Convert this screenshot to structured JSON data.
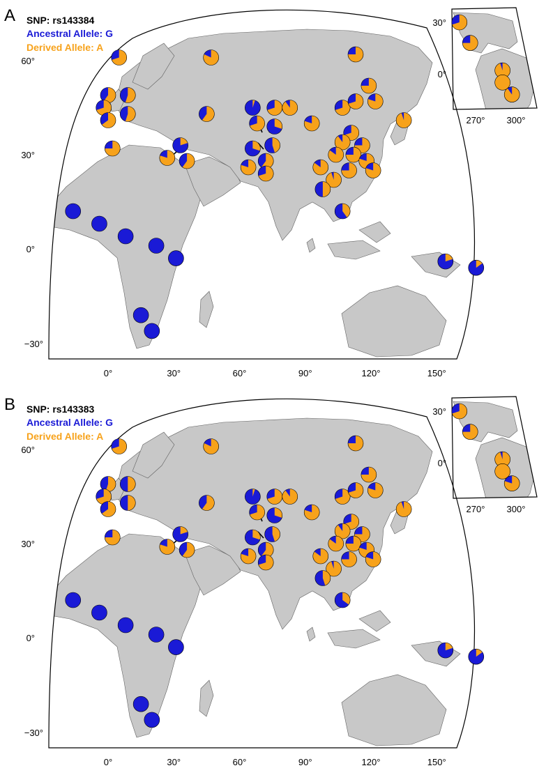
{
  "colors": {
    "ancestral": "#1a1ad6",
    "derived": "#f7a21b",
    "land": "#c8c8c8",
    "coast": "#606060",
    "frame": "#000000"
  },
  "map_lat_ticks": [
    "60°",
    "30°",
    "0°",
    "−30°"
  ],
  "map_lon_ticks": [
    "0°",
    "30°",
    "60°",
    "90°",
    "120°",
    "150°"
  ],
  "inset_lat_ticks": [
    "30°",
    "0°"
  ],
  "inset_lon_ticks": [
    "270°",
    "300°"
  ],
  "panels": [
    {
      "letter": "A",
      "snp": "SNP: rs143384",
      "ancestral": "Ancestral Allele: G",
      "derived": "Derived Allele: A",
      "pies": [
        {
          "lon": 5,
          "lat": 61,
          "derived": 0.7
        },
        {
          "lon": 47,
          "lat": 61,
          "derived": 0.82
        },
        {
          "lon": 113,
          "lat": 62,
          "derived": 0.75
        },
        {
          "lon": 0,
          "lat": 49,
          "derived": 0.6
        },
        {
          "lon": -2,
          "lat": 45,
          "derived": 0.7
        },
        {
          "lon": 9,
          "lat": 49,
          "derived": 0.55
        },
        {
          "lon": 0,
          "lat": 41,
          "derived": 0.65
        },
        {
          "lon": 9,
          "lat": 43,
          "derived": 0.55
        },
        {
          "lon": 2,
          "lat": 32,
          "derived": 0.75
        },
        {
          "lon": 45,
          "lat": 43,
          "derived": 0.6
        },
        {
          "lon": 66,
          "lat": 45,
          "derived": 0.05
        },
        {
          "lon": 76,
          "lat": 45,
          "derived": 0.7
        },
        {
          "lon": 83,
          "lat": 45,
          "derived": 0.9
        },
        {
          "lon": 68,
          "lat": 40,
          "derived": 0.7
        },
        {
          "lon": 76,
          "lat": 39,
          "derived": 0.3
        },
        {
          "lon": 66,
          "lat": 32,
          "derived": 0.3
        },
        {
          "lon": 75,
          "lat": 33,
          "derived": 0.45
        },
        {
          "lon": 72,
          "lat": 28,
          "derived": 0.6
        },
        {
          "lon": 64,
          "lat": 26,
          "derived": 0.8
        },
        {
          "lon": 72,
          "lat": 24,
          "derived": 0.7
        },
        {
          "lon": 33,
          "lat": 33,
          "derived": 0.2
        },
        {
          "lon": 36,
          "lat": 28,
          "derived": 0.6
        },
        {
          "lon": 27,
          "lat": 29,
          "derived": 0.8
        },
        {
          "lon": 93,
          "lat": 40,
          "derived": 0.8
        },
        {
          "lon": 107,
          "lat": 45,
          "derived": 0.7
        },
        {
          "lon": 113,
          "lat": 47,
          "derived": 0.7
        },
        {
          "lon": 119,
          "lat": 52,
          "derived": 0.75
        },
        {
          "lon": 122,
          "lat": 47,
          "derived": 0.8
        },
        {
          "lon": 135,
          "lat": 41,
          "derived": 0.95
        },
        {
          "lon": 111,
          "lat": 37,
          "derived": 0.7
        },
        {
          "lon": 107,
          "lat": 34,
          "derived": 0.9
        },
        {
          "lon": 116,
          "lat": 33,
          "derived": 0.75
        },
        {
          "lon": 104,
          "lat": 30,
          "derived": 0.85
        },
        {
          "lon": 112,
          "lat": 30,
          "derived": 0.75
        },
        {
          "lon": 118,
          "lat": 28,
          "derived": 0.8
        },
        {
          "lon": 97,
          "lat": 26,
          "derived": 0.85
        },
        {
          "lon": 110,
          "lat": 25,
          "derived": 0.75
        },
        {
          "lon": 121,
          "lat": 25,
          "derived": 0.8
        },
        {
          "lon": 103,
          "lat": 22,
          "derived": 0.95
        },
        {
          "lon": 98,
          "lat": 19,
          "derived": 0.5
        },
        {
          "lon": 107,
          "lat": 12,
          "derived": 0.4
        },
        {
          "lon": -16,
          "lat": 12,
          "derived": 0
        },
        {
          "lon": -4,
          "lat": 8,
          "derived": 0
        },
        {
          "lon": 8,
          "lat": 4,
          "derived": 0
        },
        {
          "lon": 22,
          "lat": 1,
          "derived": 0
        },
        {
          "lon": 31,
          "lat": -3,
          "derived": 0
        },
        {
          "lon": 15,
          "lat": -21,
          "derived": 0
        },
        {
          "lon": 20,
          "lat": -26,
          "derived": 0
        },
        {
          "lon": 154,
          "lat": -4,
          "derived": 0.2
        },
        {
          "lon": 168,
          "lat": -6,
          "derived": 0.15
        }
      ],
      "inset_pies": [
        {
          "lon": 258,
          "lat": 30,
          "derived": 0.7
        },
        {
          "lon": 266,
          "lat": 18,
          "derived": 0.75
        },
        {
          "lon": 290,
          "lat": 2,
          "derived": 0.95
        },
        {
          "lon": 290,
          "lat": -5,
          "derived": 1
        },
        {
          "lon": 297,
          "lat": -12,
          "derived": 0.9
        }
      ]
    },
    {
      "letter": "B",
      "snp": "SNP: rs143383",
      "ancestral": "Ancestral Allele: G",
      "derived": "Derived Allele: A",
      "pies": [
        {
          "lon": 5,
          "lat": 61,
          "derived": 0.7
        },
        {
          "lon": 47,
          "lat": 61,
          "derived": 0.82
        },
        {
          "lon": 113,
          "lat": 62,
          "derived": 0.75
        },
        {
          "lon": 0,
          "lat": 49,
          "derived": 0.55
        },
        {
          "lon": -2,
          "lat": 45,
          "derived": 0.7
        },
        {
          "lon": 9,
          "lat": 49,
          "derived": 0.5
        },
        {
          "lon": 0,
          "lat": 41,
          "derived": 0.65
        },
        {
          "lon": 9,
          "lat": 43,
          "derived": 0.5
        },
        {
          "lon": 2,
          "lat": 32,
          "derived": 0.75
        },
        {
          "lon": 45,
          "lat": 43,
          "derived": 0.6
        },
        {
          "lon": 66,
          "lat": 45,
          "derived": 0.05
        },
        {
          "lon": 76,
          "lat": 45,
          "derived": 0.7
        },
        {
          "lon": 83,
          "lat": 45,
          "derived": 0.9
        },
        {
          "lon": 68,
          "lat": 40,
          "derived": 0.7
        },
        {
          "lon": 76,
          "lat": 39,
          "derived": 0.3
        },
        {
          "lon": 66,
          "lat": 32,
          "derived": 0.3
        },
        {
          "lon": 75,
          "lat": 33,
          "derived": 0.45
        },
        {
          "lon": 72,
          "lat": 28,
          "derived": 0.6
        },
        {
          "lon": 64,
          "lat": 26,
          "derived": 0.8
        },
        {
          "lon": 72,
          "lat": 24,
          "derived": 0.7
        },
        {
          "lon": 33,
          "lat": 33,
          "derived": 0.2
        },
        {
          "lon": 36,
          "lat": 28,
          "derived": 0.6
        },
        {
          "lon": 27,
          "lat": 29,
          "derived": 0.8
        },
        {
          "lon": 93,
          "lat": 40,
          "derived": 0.8
        },
        {
          "lon": 107,
          "lat": 45,
          "derived": 0.7
        },
        {
          "lon": 113,
          "lat": 47,
          "derived": 0.7
        },
        {
          "lon": 119,
          "lat": 52,
          "derived": 0.75
        },
        {
          "lon": 122,
          "lat": 47,
          "derived": 0.8
        },
        {
          "lon": 135,
          "lat": 41,
          "derived": 0.95
        },
        {
          "lon": 111,
          "lat": 37,
          "derived": 0.7
        },
        {
          "lon": 107,
          "lat": 34,
          "derived": 0.9
        },
        {
          "lon": 116,
          "lat": 33,
          "derived": 0.75
        },
        {
          "lon": 104,
          "lat": 30,
          "derived": 0.85
        },
        {
          "lon": 112,
          "lat": 30,
          "derived": 0.75
        },
        {
          "lon": 118,
          "lat": 28,
          "derived": 0.8
        },
        {
          "lon": 97,
          "lat": 26,
          "derived": 0.85
        },
        {
          "lon": 110,
          "lat": 25,
          "derived": 0.75
        },
        {
          "lon": 121,
          "lat": 25,
          "derived": 0.8
        },
        {
          "lon": 103,
          "lat": 22,
          "derived": 0.95
        },
        {
          "lon": 98,
          "lat": 19,
          "derived": 0.45
        },
        {
          "lon": 107,
          "lat": 12,
          "derived": 0.35
        },
        {
          "lon": -16,
          "lat": 12,
          "derived": 0
        },
        {
          "lon": -4,
          "lat": 8,
          "derived": 0
        },
        {
          "lon": 8,
          "lat": 4,
          "derived": 0
        },
        {
          "lon": 22,
          "lat": 1,
          "derived": 0
        },
        {
          "lon": 31,
          "lat": -3,
          "derived": 0
        },
        {
          "lon": 15,
          "lat": -21,
          "derived": 0
        },
        {
          "lon": 20,
          "lat": -26,
          "derived": 0
        },
        {
          "lon": 154,
          "lat": -4,
          "derived": 0.2
        },
        {
          "lon": 168,
          "lat": -6,
          "derived": 0.15
        }
      ],
      "inset_pies": [
        {
          "lon": 258,
          "lat": 30,
          "derived": 0.7
        },
        {
          "lon": 266,
          "lat": 18,
          "derived": 0.75
        },
        {
          "lon": 290,
          "lat": 2,
          "derived": 0.95
        },
        {
          "lon": 290,
          "lat": -5,
          "derived": 1
        },
        {
          "lon": 297,
          "lat": -12,
          "derived": 0.8
        }
      ]
    }
  ]
}
